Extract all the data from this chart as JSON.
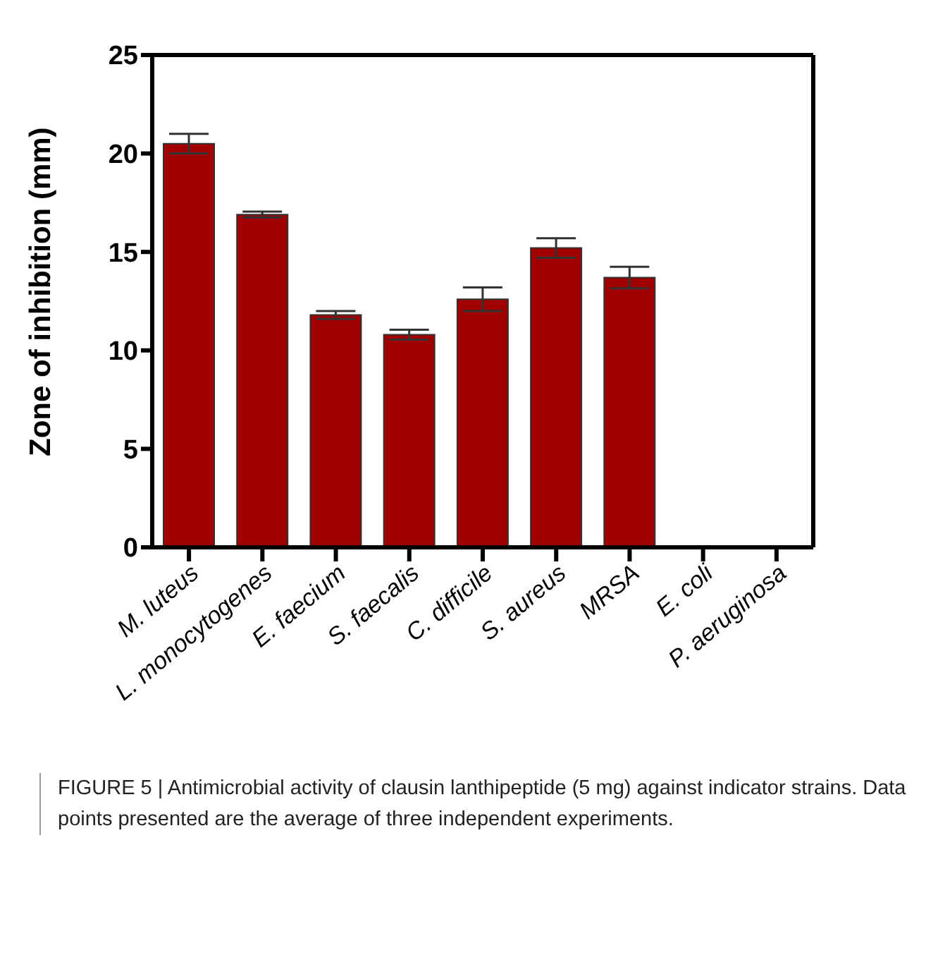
{
  "chart_data": {
    "type": "bar",
    "ylabel": "Zone of inhibition (mm)",
    "categories": [
      "M. luteus",
      "L. monocytogenes",
      "E. faecium",
      "S. faecalis",
      "C. difficile",
      "S. aureus",
      "MRSA",
      "E. coli",
      "P. aeruginosa"
    ],
    "values": [
      20.5,
      16.9,
      11.8,
      10.8,
      12.6,
      15.2,
      13.7,
      0,
      0
    ],
    "errors": [
      0.5,
      0.15,
      0.2,
      0.25,
      0.6,
      0.5,
      0.55,
      null,
      null
    ],
    "color": "#a00000",
    "ylim": [
      0,
      25
    ],
    "yticks": [
      0,
      5,
      10,
      15,
      20,
      25
    ],
    "grid": false,
    "legend": false,
    "annotations": [
      "FIGURE 5 | Antimicrobial activity of clausin lanthipeptide (5 mg) against indicator strains. Data points presented are the average of three independent experiments."
    ]
  }
}
